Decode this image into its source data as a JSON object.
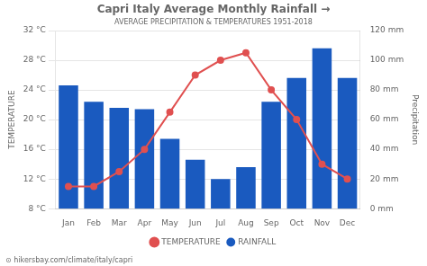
{
  "chart_data": {
    "type": "bar",
    "title": "Capri Italy Average Monthly Rainfall →",
    "subtitle": "AVERAGE PRECIPITATION & TEMPERATURES 1951-2018",
    "annotation": "⊙ hikersbay.com/climate/italy/capri",
    "categories": [
      "Jan",
      "Feb",
      "Mar",
      "Apr",
      "May",
      "Jun",
      "Jul",
      "Aug",
      "Sep",
      "Oct",
      "Nov",
      "Dec"
    ],
    "series": [
      {
        "name": "TEMPERATURE",
        "type": "line",
        "color": "#e05050",
        "marker": "o",
        "values": [
          11,
          11,
          13,
          16,
          21,
          26,
          28,
          29,
          24,
          20,
          14,
          12
        ]
      },
      {
        "name": "RAINFALL",
        "type": "bar",
        "color": "#1a5abf",
        "axis": "y2",
        "values": [
          83,
          72,
          68,
          67,
          47,
          33,
          20,
          28,
          72,
          88,
          108,
          88
        ]
      }
    ],
    "ylabel": "TEMPERATURE",
    "y2label": "Precipitation",
    "ylim": [
      8,
      32
    ],
    "yticks": [
      {
        "value": 8,
        "label": "8 °C"
      },
      {
        "value": 12,
        "label": "12 °C"
      },
      {
        "value": 16,
        "label": "16 °C"
      },
      {
        "value": 20,
        "label": "20 °C"
      },
      {
        "value": 24,
        "label": "24 °C"
      },
      {
        "value": 28,
        "label": "28 °C"
      },
      {
        "value": 32,
        "label": "32 °C"
      }
    ],
    "y2lim": [
      0,
      120
    ],
    "y2ticks": [
      {
        "value": 0,
        "label": "0 mm"
      },
      {
        "value": 20,
        "label": "20 mm"
      },
      {
        "value": 40,
        "label": "40 mm"
      },
      {
        "value": 60,
        "label": "60 mm"
      },
      {
        "value": 80,
        "label": "80 mm"
      },
      {
        "value": 100,
        "label": "100 mm"
      },
      {
        "value": 120,
        "label": "120 mm"
      }
    ],
    "grid": true,
    "legend": "bottom"
  }
}
